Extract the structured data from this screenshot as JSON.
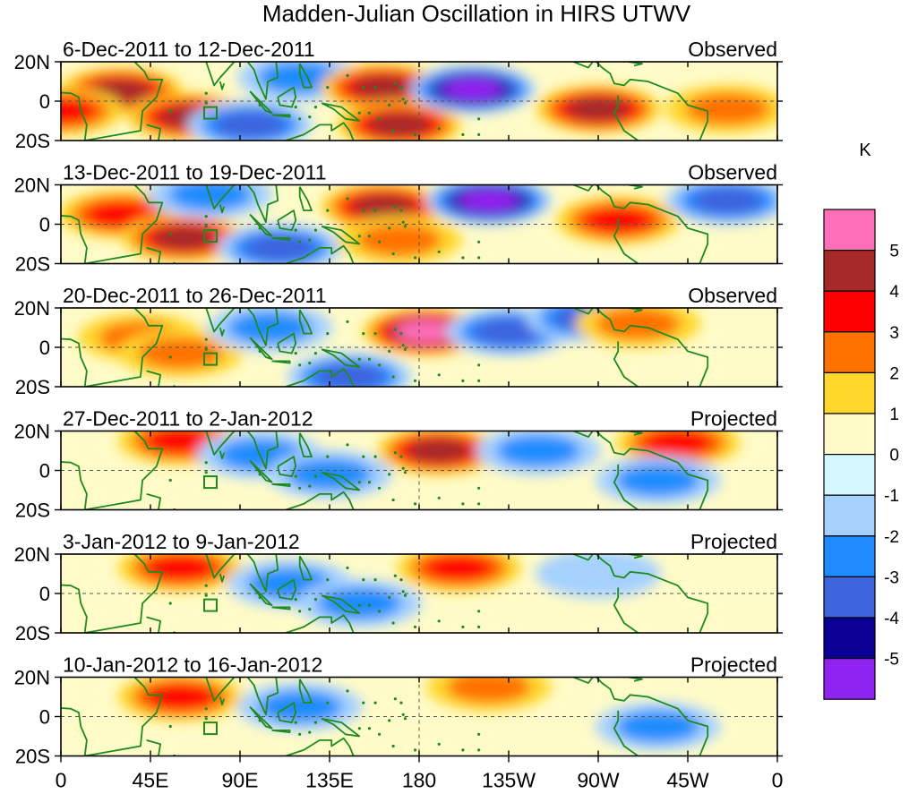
{
  "chart_data": {
    "type": "heatmap",
    "title": "Madden-Julian Oscillation in HIRS UTWV",
    "units": "K",
    "x_ticks": [
      "0",
      "45E",
      "90E",
      "135E",
      "180",
      "135W",
      "90W",
      "45W",
      "0"
    ],
    "y_ticks": [
      "20N",
      "0",
      "20S"
    ],
    "colorbar": {
      "labels": [
        "5",
        "4",
        "3",
        "2",
        "1",
        "0",
        "-1",
        "-2",
        "-3",
        "-4",
        "-5"
      ],
      "colors": [
        "#ff6eb9",
        "#a52a2a",
        "#ff0000",
        "#ff7200",
        "#ffd72d",
        "#fffbc8",
        "#d5f8ff",
        "#a6d1ff",
        "#1e8cff",
        "#3e64dd",
        "#0a0096",
        "#9123f0"
      ]
    },
    "panels": [
      {
        "period": "6-Dec-2011 to 12-Dec-2011",
        "status": "Observed",
        "anomalies": [
          {
            "lon": 30,
            "lat": 5,
            "value": 4
          },
          {
            "lon": 65,
            "lat": -8,
            "value": 4
          },
          {
            "lon": 0,
            "lat": -5,
            "value": 2.5
          },
          {
            "lon": 95,
            "lat": -12,
            "value": -2.5
          },
          {
            "lon": 120,
            "lat": 12,
            "value": -2
          },
          {
            "lon": 162,
            "lat": 7,
            "value": 3.5
          },
          {
            "lon": 170,
            "lat": -12,
            "value": 3.5
          },
          {
            "lon": 207,
            "lat": 6,
            "value": -5
          },
          {
            "lon": 270,
            "lat": -4,
            "value": 3.5
          },
          {
            "lon": 335,
            "lat": -4,
            "value": 2
          }
        ]
      },
      {
        "period": "13-Dec-2011 to 19-Dec-2011",
        "status": "Observed",
        "anomalies": [
          {
            "lon": 30,
            "lat": 5,
            "value": 2.5
          },
          {
            "lon": 62,
            "lat": -7,
            "value": 3.5
          },
          {
            "lon": 75,
            "lat": 15,
            "value": -2
          },
          {
            "lon": 110,
            "lat": -12,
            "value": -2.5
          },
          {
            "lon": 162,
            "lat": 9,
            "value": 4
          },
          {
            "lon": 170,
            "lat": -8,
            "value": 2
          },
          {
            "lon": 215,
            "lat": 12,
            "value": -4.5
          },
          {
            "lon": 280,
            "lat": 2,
            "value": 3
          },
          {
            "lon": 335,
            "lat": 12,
            "value": -2.5
          }
        ]
      },
      {
        "period": "20-Dec-2011 to 26-Dec-2011",
        "status": "Observed",
        "anomalies": [
          {
            "lon": 40,
            "lat": 5,
            "value": 1.5
          },
          {
            "lon": 60,
            "lat": -3,
            "value": 1.5
          },
          {
            "lon": 105,
            "lat": 10,
            "value": -2
          },
          {
            "lon": 145,
            "lat": -15,
            "value": -2.5
          },
          {
            "lon": 183,
            "lat": 8,
            "value": 5
          },
          {
            "lon": 225,
            "lat": 8,
            "value": -2.5
          },
          {
            "lon": 265,
            "lat": 15,
            "value": -3
          },
          {
            "lon": 290,
            "lat": 12,
            "value": 2
          }
        ]
      },
      {
        "period": "27-Dec-2011 to 2-Jan-2012",
        "status": "Projected",
        "anomalies": [
          {
            "lon": 60,
            "lat": 15,
            "value": 2.5
          },
          {
            "lon": 100,
            "lat": 8,
            "value": -1.5
          },
          {
            "lon": 135,
            "lat": -2,
            "value": -1.5
          },
          {
            "lon": 190,
            "lat": 10,
            "value": 4
          },
          {
            "lon": 240,
            "lat": 10,
            "value": -1.5
          },
          {
            "lon": 310,
            "lat": 14,
            "value": 2.5
          },
          {
            "lon": 300,
            "lat": -5,
            "value": -1.5
          }
        ]
      },
      {
        "period": "3-Jan-2012 to 9-Jan-2012",
        "status": "Projected",
        "anomalies": [
          {
            "lon": 60,
            "lat": 13,
            "value": 2.5
          },
          {
            "lon": 115,
            "lat": 5,
            "value": -1.5
          },
          {
            "lon": 150,
            "lat": -5,
            "value": -1.5
          },
          {
            "lon": 200,
            "lat": 13,
            "value": 3
          },
          {
            "lon": 270,
            "lat": 10,
            "value": -1
          }
        ]
      },
      {
        "period": "10-Jan-2012 to 16-Jan-2012",
        "status": "Projected",
        "anomalies": [
          {
            "lon": 60,
            "lat": 10,
            "value": 2.5
          },
          {
            "lon": 120,
            "lat": 5,
            "value": -1.5
          },
          {
            "lon": 215,
            "lat": 15,
            "value": 1.5
          },
          {
            "lon": 300,
            "lat": -5,
            "value": -1.5
          }
        ]
      }
    ]
  }
}
